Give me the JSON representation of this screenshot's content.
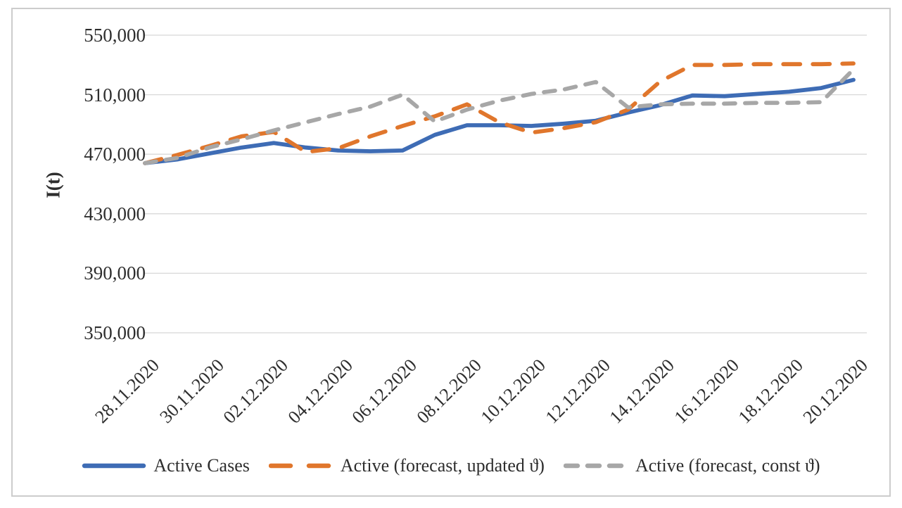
{
  "chart_data": {
    "type": "line",
    "title": "",
    "xlabel": "",
    "ylabel": "I(t)",
    "ylim": [
      350000,
      550000
    ],
    "grid": "horizontal",
    "legend_position": "bottom",
    "y_ticks": [
      550000,
      510000,
      470000,
      430000,
      390000,
      350000
    ],
    "y_tick_labels": [
      "550,000",
      "510,000",
      "470,000",
      "430,000",
      "390,000",
      "350,000"
    ],
    "x": [
      "28.11.2020",
      "29.11.2020",
      "30.11.2020",
      "01.12.2020",
      "02.12.2020",
      "03.12.2020",
      "04.12.2020",
      "05.12.2020",
      "06.12.2020",
      "07.12.2020",
      "08.12.2020",
      "09.12.2020",
      "10.12.2020",
      "11.12.2020",
      "12.12.2020",
      "13.12.2020",
      "14.12.2020",
      "15.12.2020",
      "16.12.2020",
      "17.12.2020",
      "18.12.2020",
      "19.12.2020",
      "20.12.2020"
    ],
    "x_tick_labels": [
      "28.11.2020",
      "30.11.2020",
      "02.12.2020",
      "04.12.2020",
      "06.12.2020",
      "08.12.2020",
      "10.12.2020",
      "12.12.2020",
      "14.12.2020",
      "16.12.2020",
      "18.12.2020",
      "20.12.2020"
    ],
    "series": [
      {
        "name": "Active Cases",
        "color": "#3E6CB5",
        "dash": "solid",
        "values": [
          464000,
          466500,
          470500,
          474500,
          477500,
          474500,
          472500,
          472000,
          472500,
          483000,
          489500,
          489500,
          489000,
          490500,
          492500,
          498000,
          503000,
          509500,
          509000,
          510500,
          512000,
          514500,
          520000
        ]
      },
      {
        "name": "Active (forecast, updated ϑ)",
        "color": "#E0762C",
        "dash": "long-dash",
        "values": [
          464000,
          469500,
          475500,
          482000,
          485000,
          471500,
          474000,
          482000,
          489000,
          495500,
          503500,
          491500,
          484500,
          487500,
          491500,
          500000,
          519000,
          530000,
          530000,
          530500,
          530500,
          530500,
          531000
        ]
      },
      {
        "name": "Active (forecast, const ϑ)",
        "color": "#A7A7A7",
        "dash": "dash",
        "values": [
          464000,
          467500,
          474500,
          480000,
          486000,
          491500,
          497000,
          502000,
          510000,
          492000,
          500000,
          506000,
          510500,
          513500,
          518500,
          501500,
          503500,
          504000,
          504000,
          504500,
          504500,
          505000,
          527000
        ]
      }
    ],
    "colors": {
      "gridline": "#d8d8d8",
      "border": "#cccccc",
      "text": "#2e2e2e"
    }
  }
}
